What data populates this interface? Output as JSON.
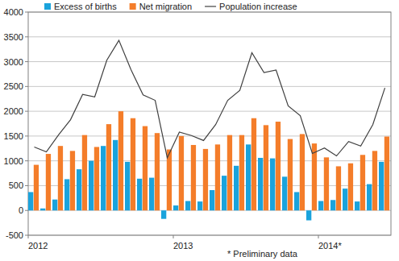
{
  "chart_data": {
    "type": "bar",
    "annotation": "* Preliminary data",
    "categories": [
      "2012",
      null,
      null,
      null,
      null,
      null,
      null,
      null,
      null,
      null,
      null,
      null,
      "2013",
      null,
      null,
      null,
      null,
      null,
      null,
      null,
      null,
      null,
      null,
      null,
      "2014*",
      null,
      null,
      null,
      null,
      null
    ],
    "series": [
      {
        "name": "Excess of births",
        "type": "bar",
        "color": "#1aa3dc",
        "values": [
          370,
          40,
          220,
          630,
          830,
          1000,
          1300,
          1420,
          980,
          640,
          660,
          -170,
          100,
          190,
          180,
          410,
          700,
          900,
          1330,
          1060,
          1050,
          680,
          370,
          -200,
          190,
          210,
          440,
          180,
          530,
          980
        ]
      },
      {
        "name": "Net migration",
        "type": "bar",
        "color": "#f47d2a",
        "values": [
          920,
          1140,
          1300,
          1200,
          1520,
          1280,
          1740,
          2000,
          1860,
          1700,
          1560,
          1230,
          1500,
          1320,
          1240,
          1330,
          1520,
          1520,
          1860,
          1720,
          1790,
          1440,
          1540,
          1350,
          1070,
          890,
          950,
          1120,
          1200,
          1490
        ]
      },
      {
        "name": "Population increase",
        "type": "line",
        "color": "#404040",
        "values": [
          1280,
          1180,
          1520,
          1830,
          2340,
          2290,
          3030,
          3430,
          2840,
          2330,
          2220,
          1060,
          1580,
          1510,
          1410,
          1730,
          2220,
          2420,
          3180,
          2780,
          2830,
          2110,
          1910,
          1150,
          1260,
          1100,
          1390,
          1300,
          1730,
          2470
        ]
      }
    ],
    "ylim": [
      -500,
      4000
    ],
    "yticks": [
      -500,
      0,
      500,
      1000,
      1500,
      2000,
      2500,
      3000,
      3500,
      4000
    ],
    "grid": true,
    "legend": "top"
  }
}
